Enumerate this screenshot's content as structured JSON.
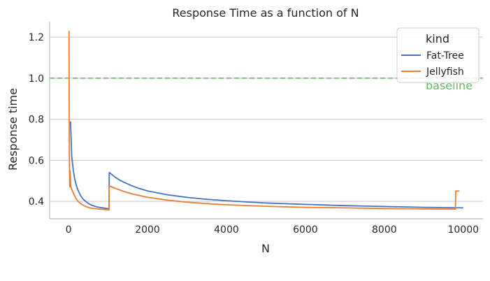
{
  "chart_data": {
    "type": "line",
    "title": "Response Time as a function of N",
    "xlabel": "N",
    "ylabel": "Response time",
    "xlim": [
      -480,
      10500
    ],
    "ylim": [
      0.315,
      1.275
    ],
    "xticks": [
      0,
      2000,
      4000,
      6000,
      8000,
      10000
    ],
    "yticks": [
      0.4,
      0.6,
      0.8,
      1.0,
      1.2
    ],
    "xtick_labels": [
      "0",
      "2000",
      "4000",
      "6000",
      "8000",
      "10000"
    ],
    "ytick_labels": [
      "0.4",
      "0.6",
      "0.8",
      "1.0",
      "1.2"
    ],
    "grid": "horizontal",
    "legend": {
      "title": "kind",
      "placement": "top-right",
      "entries": [
        "Fat-Tree",
        "Jellyfish"
      ]
    },
    "series": [
      {
        "name": "Fat-Tree",
        "color": "#4472c4",
        "points": [
          [
            50,
            0.79
          ],
          [
            80,
            0.62
          ],
          [
            120,
            0.55
          ],
          [
            160,
            0.505
          ],
          [
            200,
            0.475
          ],
          [
            250,
            0.45
          ],
          [
            300,
            0.43
          ],
          [
            350,
            0.415
          ],
          [
            400,
            0.405
          ],
          [
            500,
            0.39
          ],
          [
            600,
            0.38
          ],
          [
            700,
            0.374
          ],
          [
            800,
            0.37
          ],
          [
            900,
            0.367
          ],
          [
            1024,
            0.364
          ],
          [
            1030,
            0.54
          ],
          [
            1100,
            0.53
          ],
          [
            1200,
            0.515
          ],
          [
            1300,
            0.503
          ],
          [
            1400,
            0.493
          ],
          [
            1600,
            0.476
          ],
          [
            1800,
            0.462
          ],
          [
            2000,
            0.451
          ],
          [
            2500,
            0.432
          ],
          [
            3000,
            0.419
          ],
          [
            3500,
            0.41
          ],
          [
            4000,
            0.403
          ],
          [
            4500,
            0.397
          ],
          [
            5000,
            0.392
          ],
          [
            6000,
            0.385
          ],
          [
            7000,
            0.379
          ],
          [
            8000,
            0.375
          ],
          [
            9000,
            0.371
          ],
          [
            10000,
            0.368
          ]
        ]
      },
      {
        "name": "Jellyfish",
        "color": "#ed7d31",
        "points": [
          [
            10,
            1.23
          ],
          [
            15,
            0.85
          ],
          [
            20,
            0.62
          ],
          [
            30,
            0.47
          ],
          [
            40,
            0.55
          ],
          [
            50,
            0.5
          ],
          [
            60,
            0.47
          ],
          [
            80,
            0.46
          ],
          [
            120,
            0.44
          ],
          [
            160,
            0.425
          ],
          [
            200,
            0.41
          ],
          [
            250,
            0.398
          ],
          [
            300,
            0.39
          ],
          [
            400,
            0.378
          ],
          [
            500,
            0.37
          ],
          [
            600,
            0.366
          ],
          [
            800,
            0.362
          ],
          [
            1024,
            0.358
          ],
          [
            1030,
            0.475
          ],
          [
            1100,
            0.47
          ],
          [
            1200,
            0.462
          ],
          [
            1400,
            0.448
          ],
          [
            1600,
            0.437
          ],
          [
            1800,
            0.428
          ],
          [
            2000,
            0.42
          ],
          [
            2500,
            0.406
          ],
          [
            3000,
            0.396
          ],
          [
            3500,
            0.389
          ],
          [
            4000,
            0.383
          ],
          [
            5000,
            0.376
          ],
          [
            6000,
            0.371
          ],
          [
            7000,
            0.368
          ],
          [
            8000,
            0.365
          ],
          [
            9000,
            0.363
          ],
          [
            9800,
            0.362
          ],
          [
            9810,
            0.45
          ],
          [
            9900,
            0.45
          ]
        ]
      }
    ],
    "annotations": [
      {
        "type": "hline",
        "y": 1.0,
        "style": "dashed",
        "color": "#5bbf5b",
        "label": "baseline"
      }
    ]
  }
}
